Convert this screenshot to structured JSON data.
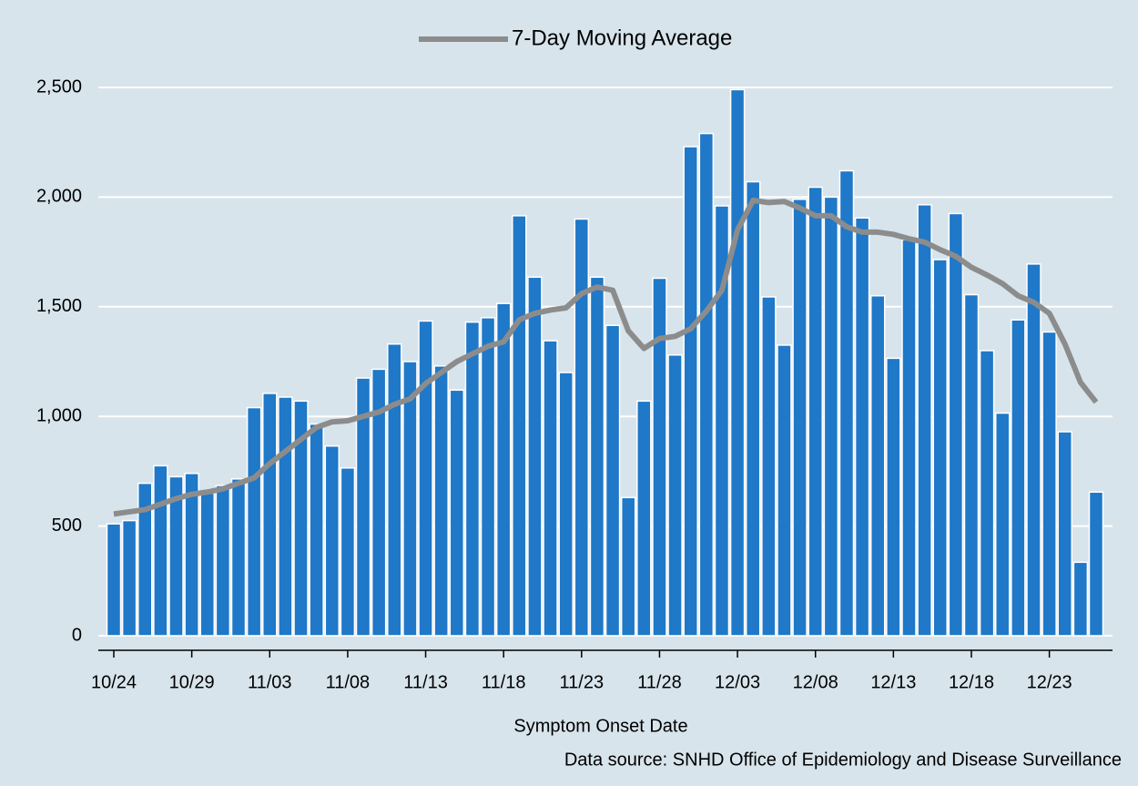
{
  "chart_data": {
    "type": "bar",
    "x_label": "Symptom Onset Date",
    "source": "Data source: SNHD Office of Epidemiology and Disease Surveillance",
    "categories": [
      "10/24",
      null,
      null,
      null,
      null,
      "10/29",
      null,
      null,
      null,
      null,
      "11/03",
      null,
      null,
      null,
      null,
      "11/08",
      null,
      null,
      null,
      null,
      "11/13",
      null,
      null,
      null,
      null,
      "11/18",
      null,
      null,
      null,
      null,
      "11/23",
      null,
      null,
      null,
      null,
      "11/28",
      null,
      null,
      null,
      null,
      "12/03",
      null,
      null,
      null,
      null,
      "12/08",
      null,
      null,
      null,
      null,
      "12/13",
      null,
      null,
      null,
      null,
      "12/18",
      null,
      null,
      null,
      null,
      "12/23",
      null,
      null,
      null
    ],
    "series": [
      {
        "type": "bar",
        "color": "#1f78c8",
        "values": [
          510,
          525,
          695,
          775,
          725,
          740,
          650,
          685,
          715,
          1040,
          1105,
          1088,
          1070,
          965,
          865,
          765,
          1175,
          1215,
          1330,
          1250,
          1435,
          1230,
          1120,
          1430,
          1450,
          1515,
          1915,
          1635,
          1345,
          1200,
          1900,
          1635,
          1415,
          630,
          1070,
          1630,
          1280,
          2230,
          2290,
          1960,
          2490,
          2070,
          1545,
          1325,
          1990,
          2045,
          2000,
          2120,
          1905,
          1550,
          1265,
          1805,
          1965,
          1715,
          1925,
          1555,
          1300,
          1015,
          1440,
          1695,
          1385,
          930,
          335,
          655
        ]
      },
      {
        "type": "line",
        "name": "7-Day Moving Average",
        "color": "#8c8c8c",
        "values": [
          555,
          565,
          575,
          600,
          625,
          645,
          655,
          670,
          695,
          720,
          785,
          840,
          895,
          950,
          975,
          980,
          1000,
          1020,
          1055,
          1080,
          1150,
          1200,
          1250,
          1285,
          1320,
          1340,
          1440,
          1470,
          1485,
          1495,
          1560,
          1590,
          1575,
          1390,
          1310,
          1355,
          1365,
          1400,
          1480,
          1575,
          1850,
          1985,
          1975,
          1980,
          1950,
          1915,
          1915,
          1865,
          1840,
          1840,
          1830,
          1810,
          1795,
          1760,
          1730,
          1680,
          1645,
          1605,
          1550,
          1520,
          1470,
          1330,
          1155,
          1065
        ]
      }
    ],
    "ylim": [
      0,
      2500
    ],
    "yticks": [
      0,
      {
        "value": 500,
        "label": "500"
      },
      {
        "value": 1000,
        "label": "1,000"
      },
      {
        "value": 1500,
        "label": "1,500"
      },
      {
        "value": 2000,
        "label": "2,000"
      },
      {
        "value": 2500,
        "label": "2,500"
      }
    ],
    "grid": true,
    "legend": "top",
    "background": "#d7e4ec"
  }
}
